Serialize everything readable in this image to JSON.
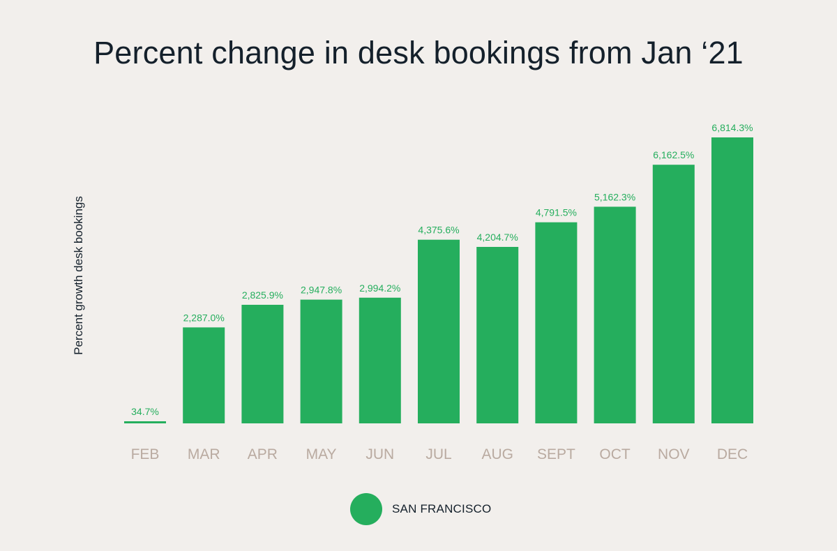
{
  "colors": {
    "bar": "#25ae5d",
    "value_label": "#25ae5d",
    "tick_label": "#b9aaa0",
    "text": "#14202b",
    "background": "#f2efec"
  },
  "chart_data": {
    "type": "bar",
    "title": "Percent change in desk bookings from Jan ‘21",
    "ylabel": "Percent growth desk bookings",
    "xlabel": "",
    "categories": [
      "FEB",
      "MAR",
      "APR",
      "MAY",
      "JUN",
      "JUL",
      "AUG",
      "SEPT",
      "OCT",
      "NOV",
      "DEC"
    ],
    "series": [
      {
        "name": "SAN FRANCISCO",
        "values": [
          34.7,
          2287.0,
          2825.9,
          2947.8,
          2994.2,
          4375.6,
          4204.7,
          4791.5,
          5162.3,
          6162.5,
          6814.3
        ],
        "labels": [
          "34.7%",
          "2,287.0%",
          "2,825.9%",
          "2,947.8%",
          "2,994.2%",
          "4,375.6%",
          "4,204.7%",
          "4,791.5%",
          "5,162.3%",
          "6,162.5%",
          "6,814.3%"
        ]
      }
    ],
    "ylim": [
      0,
      6814.3
    ],
    "grid": false,
    "legend_position": "bottom-center"
  }
}
